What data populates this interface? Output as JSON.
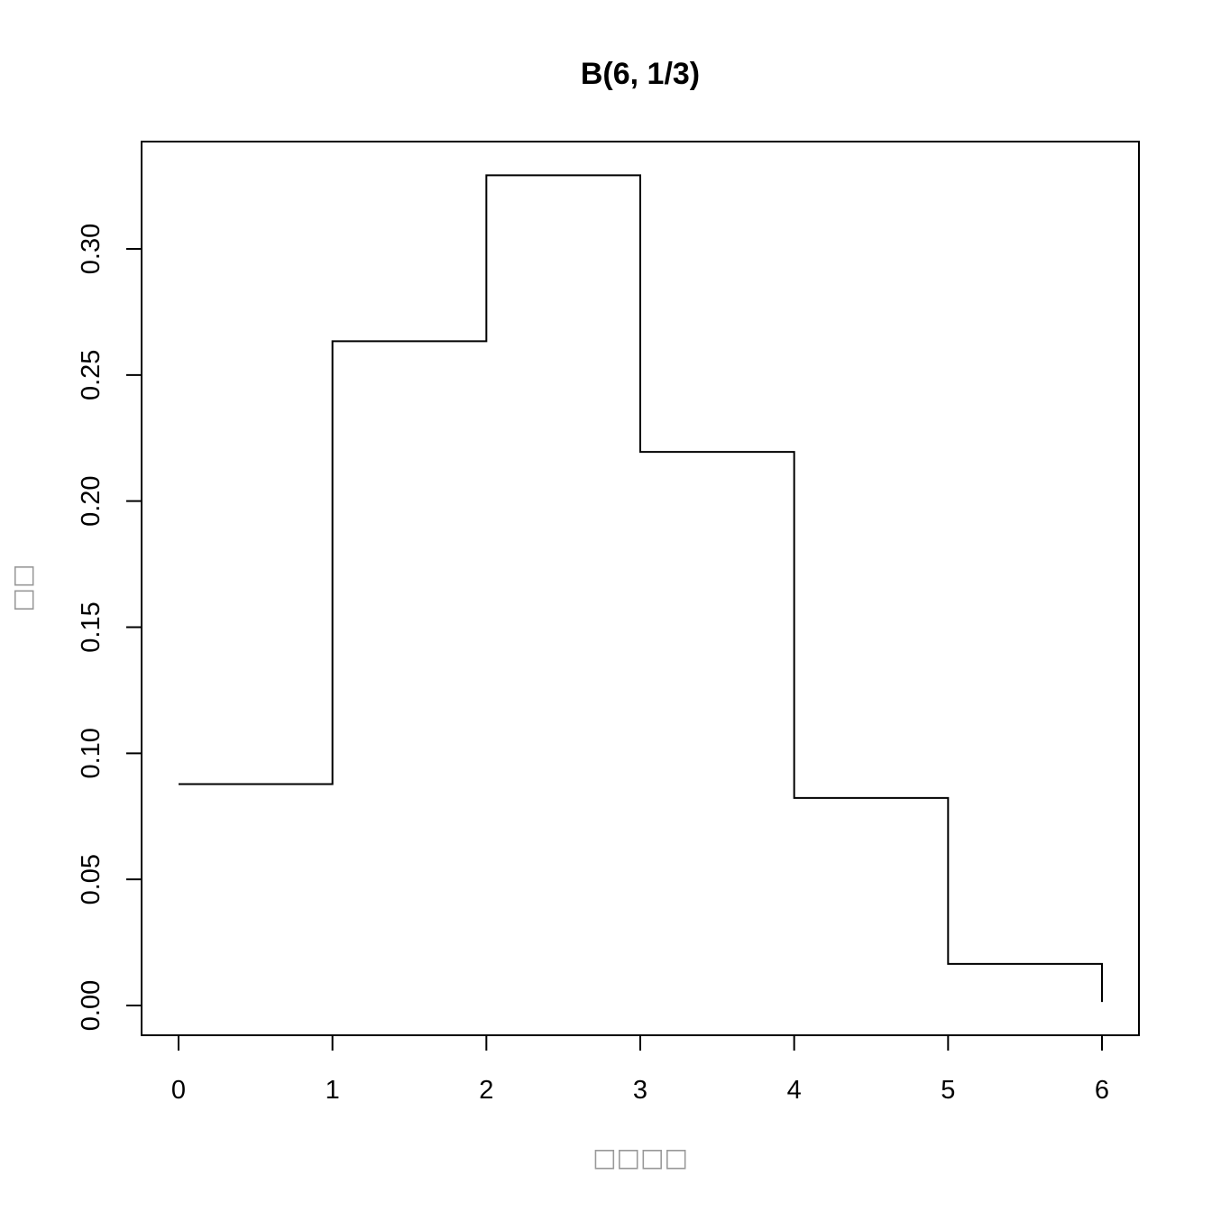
{
  "chart_data": {
    "type": "line",
    "style": "step",
    "title": "B(6, 1/3)",
    "xlabel": "□□□□",
    "ylabel": "□□",
    "x": [
      0,
      1,
      2,
      3,
      4,
      5,
      6
    ],
    "values": [
      0.0878,
      0.2634,
      0.3292,
      0.2195,
      0.0823,
      0.0165,
      0.0014
    ],
    "xlim": [
      0,
      6
    ],
    "ylim": [
      0,
      0.33
    ],
    "x_ticks": [
      "0",
      "1",
      "2",
      "3",
      "4",
      "5",
      "6"
    ],
    "y_ticks": [
      "0.00",
      "0.05",
      "0.10",
      "0.15",
      "0.20",
      "0.25",
      "0.30"
    ],
    "grid": false,
    "line_color": "#000000",
    "label_color": "#999999"
  }
}
